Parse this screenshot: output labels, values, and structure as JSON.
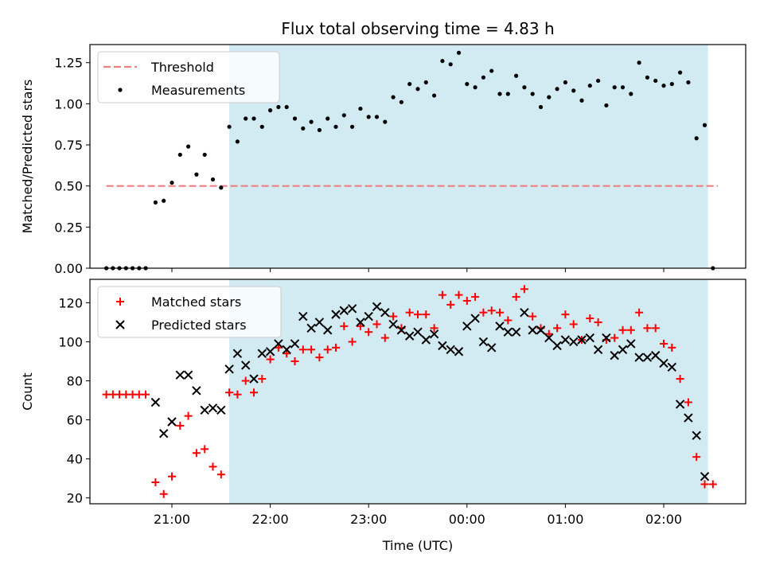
{
  "chart_data": [
    {
      "type": "scatter",
      "title": "Flux total observing time = 4.83 h",
      "ylabel": "Matched/Predicted stars",
      "xlabel": "",
      "xlim": [
        "20:10",
        "02:50"
      ],
      "ylim": [
        0,
        1.36
      ],
      "yticks": [
        0.0,
        0.25,
        0.5,
        0.75,
        1.0,
        1.25
      ],
      "ytick_labels": [
        "0.00",
        "0.25",
        "0.50",
        "0.75",
        "1.00",
        "1.25"
      ],
      "shaded_interval": {
        "start": "21:35",
        "end": "02:27",
        "color": "#add8e6"
      },
      "threshold": {
        "name": "Threshold",
        "value": 0.5,
        "x_start": "20:20",
        "x_end": "02:33",
        "color": "#f08080",
        "style": "dashed"
      },
      "legend": {
        "location": "upper left",
        "entries": [
          "Threshold",
          "Measurements"
        ]
      },
      "series": [
        {
          "name": "Measurements",
          "marker": "dot",
          "color": "#000000",
          "points": [
            [
              "20:20",
              0.0
            ],
            [
              "20:24",
              0.0
            ],
            [
              "20:28",
              0.0
            ],
            [
              "20:32",
              0.0
            ],
            [
              "20:36",
              0.0
            ],
            [
              "20:40",
              0.0
            ],
            [
              "20:44",
              0.0
            ],
            [
              "20:50",
              0.4
            ],
            [
              "20:55",
              0.41
            ],
            [
              "21:00",
              0.52
            ],
            [
              "21:05",
              0.69
            ],
            [
              "21:10",
              0.74
            ],
            [
              "21:15",
              0.57
            ],
            [
              "21:20",
              0.69
            ],
            [
              "21:25",
              0.54
            ],
            [
              "21:30",
              0.49
            ],
            [
              "21:35",
              0.86
            ],
            [
              "21:40",
              0.77
            ],
            [
              "21:45",
              0.91
            ],
            [
              "21:50",
              0.91
            ],
            [
              "21:55",
              0.86
            ],
            [
              "22:00",
              0.96
            ],
            [
              "22:05",
              0.98
            ],
            [
              "22:10",
              0.98
            ],
            [
              "22:15",
              0.91
            ],
            [
              "22:20",
              0.85
            ],
            [
              "22:25",
              0.89
            ],
            [
              "22:30",
              0.84
            ],
            [
              "22:35",
              0.91
            ],
            [
              "22:40",
              0.86
            ],
            [
              "22:45",
              0.93
            ],
            [
              "22:50",
              0.86
            ],
            [
              "22:55",
              0.97
            ],
            [
              "23:00",
              0.92
            ],
            [
              "23:05",
              0.92
            ],
            [
              "23:10",
              0.89
            ],
            [
              "23:15",
              1.04
            ],
            [
              "23:20",
              1.01
            ],
            [
              "23:25",
              1.12
            ],
            [
              "23:30",
              1.09
            ],
            [
              "23:35",
              1.13
            ],
            [
              "23:40",
              1.05
            ],
            [
              "23:45",
              1.26
            ],
            [
              "23:50",
              1.24
            ],
            [
              "23:55",
              1.31
            ],
            [
              "00:00",
              1.12
            ],
            [
              "00:05",
              1.1
            ],
            [
              "00:10",
              1.16
            ],
            [
              "00:15",
              1.2
            ],
            [
              "00:20",
              1.06
            ],
            [
              "00:25",
              1.06
            ],
            [
              "00:30",
              1.17
            ],
            [
              "00:35",
              1.1
            ],
            [
              "00:40",
              1.06
            ],
            [
              "00:45",
              0.98
            ],
            [
              "00:50",
              1.04
            ],
            [
              "00:55",
              1.09
            ],
            [
              "01:00",
              1.13
            ],
            [
              "01:05",
              1.08
            ],
            [
              "01:10",
              1.02
            ],
            [
              "01:15",
              1.11
            ],
            [
              "01:20",
              1.14
            ],
            [
              "01:25",
              0.99
            ],
            [
              "01:30",
              1.1
            ],
            [
              "01:35",
              1.1
            ],
            [
              "01:40",
              1.06
            ],
            [
              "01:45",
              1.25
            ],
            [
              "01:50",
              1.16
            ],
            [
              "01:55",
              1.14
            ],
            [
              "02:00",
              1.11
            ],
            [
              "02:05",
              1.12
            ],
            [
              "02:10",
              1.19
            ],
            [
              "02:15",
              1.13
            ],
            [
              "02:20",
              0.79
            ],
            [
              "02:25",
              0.87
            ],
            [
              "02:30",
              0.0
            ]
          ]
        }
      ],
      "grid": false
    },
    {
      "type": "scatter",
      "title": "",
      "ylabel": "Count",
      "xlabel": "Time (UTC)",
      "xlim": [
        "20:10",
        "02:50"
      ],
      "ylim": [
        17,
        132
      ],
      "yticks": [
        20,
        40,
        60,
        80,
        100,
        120
      ],
      "ytick_labels": [
        "20",
        "40",
        "60",
        "80",
        "100",
        "120"
      ],
      "xticks": [
        "21:00",
        "22:00",
        "23:00",
        "00:00",
        "01:00",
        "02:00"
      ],
      "xtick_labels": [
        "21:00",
        "22:00",
        "23:00",
        "00:00",
        "01:00",
        "02:00"
      ],
      "shaded_interval": {
        "start": "21:35",
        "end": "02:27",
        "color": "#add8e6"
      },
      "legend": {
        "location": "upper left",
        "entries": [
          "Matched stars",
          "Predicted stars"
        ]
      },
      "series": [
        {
          "name": "Matched stars",
          "marker": "plus",
          "color": "#ff0000",
          "points": [
            [
              "20:20",
              73
            ],
            [
              "20:24",
              73
            ],
            [
              "20:28",
              73
            ],
            [
              "20:32",
              73
            ],
            [
              "20:36",
              73
            ],
            [
              "20:40",
              73
            ],
            [
              "20:44",
              73
            ],
            [
              "20:50",
              28
            ],
            [
              "20:55",
              22
            ],
            [
              "21:00",
              31
            ],
            [
              "21:05",
              57
            ],
            [
              "21:10",
              62
            ],
            [
              "21:15",
              43
            ],
            [
              "21:20",
              45
            ],
            [
              "21:25",
              36
            ],
            [
              "21:30",
              32
            ],
            [
              "21:35",
              74
            ],
            [
              "21:40",
              73
            ],
            [
              "21:45",
              80
            ],
            [
              "21:50",
              74
            ],
            [
              "21:55",
              81
            ],
            [
              "22:00",
              91
            ],
            [
              "22:05",
              97
            ],
            [
              "22:10",
              94
            ],
            [
              "22:15",
              90
            ],
            [
              "22:20",
              96
            ],
            [
              "22:25",
              96
            ],
            [
              "22:30",
              92
            ],
            [
              "22:35",
              96
            ],
            [
              "22:40",
              97
            ],
            [
              "22:45",
              108
            ],
            [
              "22:50",
              100
            ],
            [
              "22:55",
              108
            ],
            [
              "23:00",
              105
            ],
            [
              "23:05",
              109
            ],
            [
              "23:10",
              102
            ],
            [
              "23:15",
              113
            ],
            [
              "23:20",
              107
            ],
            [
              "23:25",
              115
            ],
            [
              "23:30",
              114
            ],
            [
              "23:35",
              114
            ],
            [
              "23:40",
              107
            ],
            [
              "23:45",
              124
            ],
            [
              "23:50",
              119
            ],
            [
              "23:55",
              124
            ],
            [
              "00:00",
              121
            ],
            [
              "00:05",
              123
            ],
            [
              "00:10",
              115
            ],
            [
              "00:15",
              116
            ],
            [
              "00:20",
              115
            ],
            [
              "00:25",
              111
            ],
            [
              "00:30",
              123
            ],
            [
              "00:35",
              127
            ],
            [
              "00:40",
              113
            ],
            [
              "00:45",
              107
            ],
            [
              "00:50",
              104
            ],
            [
              "00:55",
              107
            ],
            [
              "01:00",
              114
            ],
            [
              "01:05",
              109
            ],
            [
              "01:10",
              101
            ],
            [
              "01:15",
              112
            ],
            [
              "01:20",
              110
            ],
            [
              "01:25",
              101
            ],
            [
              "01:30",
              102
            ],
            [
              "01:35",
              106
            ],
            [
              "01:40",
              106
            ],
            [
              "01:45",
              115
            ],
            [
              "01:50",
              107
            ],
            [
              "01:55",
              107
            ],
            [
              "02:00",
              99
            ],
            [
              "02:05",
              97
            ],
            [
              "02:10",
              81
            ],
            [
              "02:15",
              69
            ],
            [
              "02:20",
              41
            ],
            [
              "02:25",
              27
            ],
            [
              "02:30",
              27
            ]
          ]
        },
        {
          "name": "Predicted stars",
          "marker": "x",
          "color": "#000000",
          "points": [
            [
              "20:50",
              69
            ],
            [
              "20:55",
              53
            ],
            [
              "21:00",
              59
            ],
            [
              "21:05",
              83
            ],
            [
              "21:10",
              83
            ],
            [
              "21:15",
              75
            ],
            [
              "21:20",
              65
            ],
            [
              "21:25",
              66
            ],
            [
              "21:30",
              65
            ],
            [
              "21:35",
              86
            ],
            [
              "21:40",
              94
            ],
            [
              "21:45",
              88
            ],
            [
              "21:50",
              81
            ],
            [
              "21:55",
              94
            ],
            [
              "22:00",
              95
            ],
            [
              "22:05",
              99
            ],
            [
              "22:10",
              96
            ],
            [
              "22:15",
              99
            ],
            [
              "22:20",
              113
            ],
            [
              "22:25",
              107
            ],
            [
              "22:30",
              110
            ],
            [
              "22:35",
              106
            ],
            [
              "22:40",
              114
            ],
            [
              "22:45",
              116
            ],
            [
              "22:50",
              117
            ],
            [
              "22:55",
              110
            ],
            [
              "23:00",
              113
            ],
            [
              "23:05",
              118
            ],
            [
              "23:10",
              115
            ],
            [
              "23:15",
              109
            ],
            [
              "23:20",
              106
            ],
            [
              "23:25",
              103
            ],
            [
              "23:30",
              105
            ],
            [
              "23:35",
              101
            ],
            [
              "23:40",
              104
            ],
            [
              "23:45",
              98
            ],
            [
              "23:50",
              96
            ],
            [
              "23:55",
              95
            ],
            [
              "00:00",
              108
            ],
            [
              "00:05",
              112
            ],
            [
              "00:10",
              100
            ],
            [
              "00:15",
              97
            ],
            [
              "00:20",
              108
            ],
            [
              "00:25",
              105
            ],
            [
              "00:30",
              105
            ],
            [
              "00:35",
              115
            ],
            [
              "00:40",
              106
            ],
            [
              "00:45",
              106
            ],
            [
              "00:50",
              102
            ],
            [
              "00:55",
              98
            ],
            [
              "01:00",
              101
            ],
            [
              "01:05",
              100
            ],
            [
              "01:10",
              101
            ],
            [
              "01:15",
              102
            ],
            [
              "01:20",
              96
            ],
            [
              "01:25",
              102
            ],
            [
              "01:30",
              93
            ],
            [
              "01:35",
              96
            ],
            [
              "01:40",
              99
            ],
            [
              "01:45",
              92
            ],
            [
              "01:50",
              92
            ],
            [
              "01:55",
              93
            ],
            [
              "02:00",
              89
            ],
            [
              "02:05",
              87
            ],
            [
              "02:10",
              68
            ],
            [
              "02:15",
              61
            ],
            [
              "02:20",
              52
            ],
            [
              "02:25",
              31
            ]
          ]
        }
      ],
      "grid": false
    }
  ]
}
